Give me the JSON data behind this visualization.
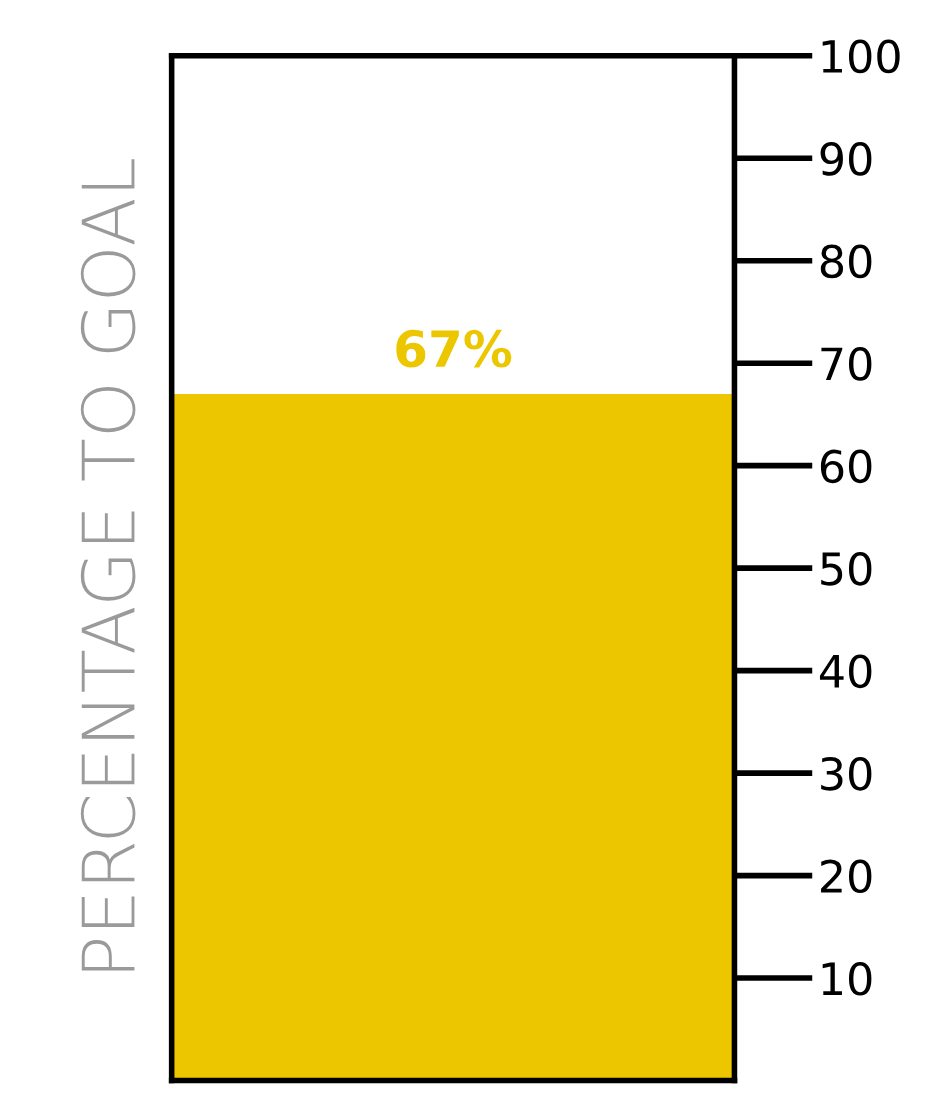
{
  "chart_data": {
    "type": "bar",
    "categories": [
      null
    ],
    "values": [
      67
    ],
    "color": "#ecc700",
    "value_labels": [
      "67%"
    ],
    "ylabel": "PERCENTAGE TO GOAL",
    "ylim": [
      0,
      100
    ],
    "yticks": [
      10,
      20,
      30,
      40,
      50,
      60,
      70,
      80,
      90,
      100
    ]
  }
}
